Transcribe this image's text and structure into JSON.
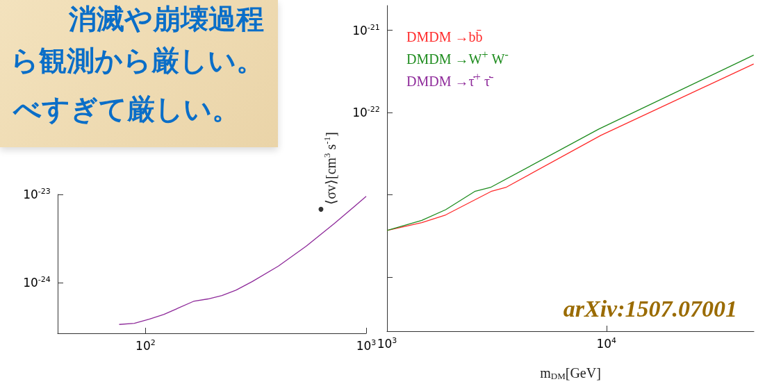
{
  "chart_data": [
    {
      "type": "other",
      "annotations": [
        "消滅や崩壊過程",
        "ら観測から厳しい。",
        "べすぎて厳しい。"
      ]
    },
    {
      "type": "line",
      "xlabel": "m$_{DM}$[GeV]",
      "ylabel": "⟨σv⟩[cm$^{3}$ s$^{-1}$]",
      "annotations": [
        "arXiv:1507.07001"
      ],
      "log": "xy",
      "xlim": [
        1000,
        47000
      ],
      "ylim": [
        2.2e-25,
        2e-21
      ],
      "xticks": [
        {
          "value": 1000,
          "label": "10$^{3}$"
        },
        {
          "value": 10000,
          "label": "10$^{4}$"
        }
      ],
      "yticks": [
        {
          "value": 1e-24,
          "label": null
        },
        {
          "value": 1e-23,
          "label": null
        },
        {
          "value": 1e-22,
          "label": "10$^{-22}$"
        },
        {
          "value": 1e-21,
          "label": "10$^{-21}$"
        }
      ],
      "legend": "top left",
      "marker": "none",
      "series": [
        {
          "name": "DMDM →bb̄",
          "color": "#ff2a2a",
          "x": [
            1000,
            1440,
            1850,
            2980,
            3500,
            9440,
            46900
          ],
          "values": [
            3.7e-24,
            4.6e-24,
            5.7e-24,
            1.1e-23,
            1.24e-23,
            5.3e-23,
            3.9e-22
          ]
        },
        {
          "name": "DMDM →W$^{+}$ W$^{-}$",
          "color": "#1e8c1e",
          "x": [
            1000,
            1440,
            1850,
            2510,
            2980,
            9230,
            46900
          ],
          "values": [
            3.7e-24,
            4.9e-24,
            6.6e-24,
            1.1e-23,
            1.24e-23,
            6.3e-23,
            5e-22
          ]
        }
      ]
    },
    {
      "type": "line",
      "log": "xy",
      "xlim": [
        40,
        1000
      ],
      "ylim": [
        2.7e-25,
        1e-23
      ],
      "xticks": [
        {
          "value": 100,
          "label": "10$^{2}$"
        },
        {
          "value": 1000,
          "label": "10$^{3}$"
        }
      ],
      "yticks": [
        {
          "value": 1e-24,
          "label": "10$^{-24}$"
        },
        {
          "value": 1e-23,
          "label": "10$^{-23}$"
        }
      ],
      "legend": "top right",
      "marker": "none",
      "series": [
        {
          "name": "DMDM →τ̇$^{+}$ τ̇$^{-}$",
          "color": "#8e2a9a",
          "x": [
            76,
            89,
            104,
            121,
            165,
            192,
            222,
            257,
            305,
            400,
            535,
            718,
            1000
          ],
          "values": [
            3.4e-25,
            3.5e-25,
            3.9e-25,
            4.4e-25,
            6.2e-25,
            6.6e-25,
            7.2e-25,
            8.3e-25,
            1.04e-24,
            1.55e-24,
            2.6e-24,
            4.7e-24,
            9.5e-24
          ]
        },
        {
          "type": "scatter",
          "color": "#000000",
          "x": [
            624
          ],
          "values": [
            6.8e-24
          ]
        }
      ]
    }
  ]
}
